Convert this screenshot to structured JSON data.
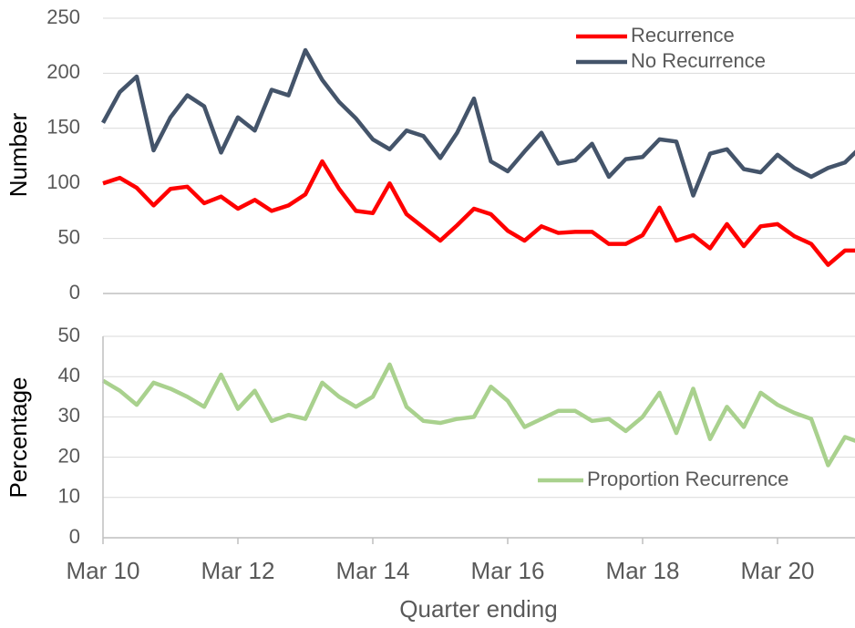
{
  "chart_data": [
    {
      "type": "line",
      "ylabel": "Number",
      "ylim": [
        0,
        250
      ],
      "yticks": [
        0,
        50,
        100,
        150,
        200,
        250
      ],
      "grid": true,
      "legend": "top-right",
      "series": [
        {
          "name": "Recurrence",
          "color": "#ff0000",
          "values": [
            100,
            105,
            96,
            80,
            95,
            97,
            82,
            88,
            77,
            85,
            75,
            80,
            90,
            120,
            95,
            75,
            73,
            100,
            72,
            60,
            48,
            62,
            77,
            72,
            57,
            48,
            61,
            55,
            56,
            56,
            45,
            45,
            53,
            78,
            48,
            53,
            41,
            63,
            43,
            61,
            63,
            52,
            45,
            26,
            39,
            39
          ]
        },
        {
          "name": "No Recurrence",
          "color": "#44546a",
          "values": [
            155,
            183,
            197,
            130,
            160,
            180,
            170,
            128,
            160,
            148,
            185,
            180,
            221,
            194,
            174,
            159,
            140,
            131,
            148,
            143,
            123,
            146,
            177,
            120,
            111,
            129,
            146,
            118,
            121,
            136,
            106,
            122,
            124,
            140,
            138,
            89,
            127,
            131,
            113,
            110,
            126,
            114,
            106,
            114,
            119,
            134
          ]
        }
      ]
    },
    {
      "type": "line",
      "ylabel": "Percentage",
      "xlabel": "Quarter ending",
      "ylim": [
        0,
        50
      ],
      "yticks": [
        0,
        10,
        20,
        30,
        40,
        50
      ],
      "grid": true,
      "legend": "bottom-right",
      "categories": [
        "Mar 10",
        null,
        null,
        null,
        null,
        null,
        null,
        null,
        "Mar 12",
        null,
        null,
        null,
        null,
        null,
        null,
        null,
        "Mar 14",
        null,
        null,
        null,
        null,
        null,
        null,
        null,
        "Mar 16",
        null,
        null,
        null,
        null,
        null,
        null,
        null,
        "Mar 18",
        null,
        null,
        null,
        null,
        null,
        null,
        null,
        "Mar 20",
        null,
        null,
        null,
        null,
        null
      ],
      "series": [
        {
          "name": "Proportion Recurrence",
          "color": "#a9d18e",
          "values": [
            39,
            36.5,
            33,
            38.5,
            37,
            35,
            32.5,
            40.5,
            32,
            36.5,
            29,
            30.5,
            29.5,
            38.5,
            35,
            32.5,
            35,
            43,
            32.5,
            29,
            28.5,
            29.5,
            30,
            37.5,
            34,
            27.5,
            29.5,
            31.5,
            31.5,
            29,
            29.5,
            26.5,
            30,
            36,
            26,
            37,
            24.5,
            32.5,
            27.5,
            36,
            33,
            31,
            29.5,
            18,
            25,
            23.5
          ]
        }
      ]
    }
  ]
}
